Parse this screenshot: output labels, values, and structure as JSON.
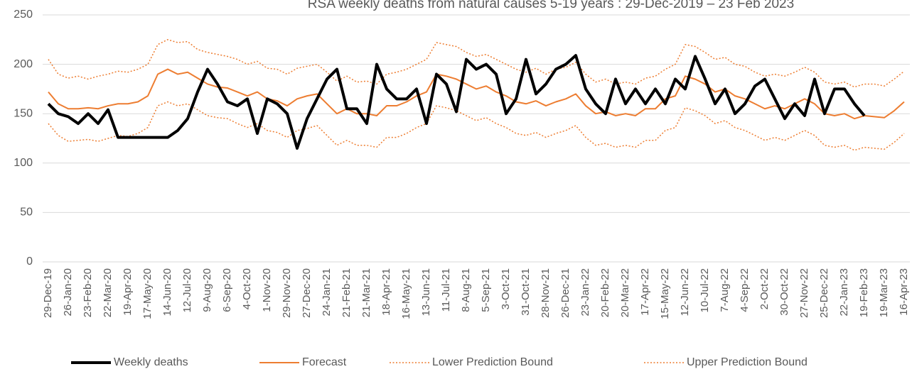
{
  "chart_data": {
    "type": "line",
    "title": "RSA weekly deaths from natural causes 5-19 years : 29-Dec-2019 – 23 Feb 2023",
    "categories": [
      "29-Dec-19",
      null,
      "26-Jan-20",
      null,
      "23-Feb-20",
      null,
      "22-Mar-20",
      null,
      "19-Apr-20",
      null,
      "17-May-20",
      null,
      "14-Jun-20",
      null,
      "12-Jul-20",
      null,
      "9-Aug-20",
      null,
      "6-Sep-20",
      null,
      "4-Oct-20",
      null,
      "1-Nov-20",
      null,
      "29-Nov-20",
      null,
      "27-Dec-20",
      null,
      "24-Jan-21",
      null,
      "21-Feb-21",
      null,
      "21-Mar-21",
      null,
      "18-Apr-21",
      null,
      "16-May-21",
      null,
      "13-Jun-21",
      null,
      "11-Jul-21",
      null,
      "8-Aug-21",
      null,
      "5-Sep-21",
      null,
      "3-Oct-21",
      null,
      "31-Oct-21",
      null,
      "28-Nov-21",
      null,
      "26-Dec-21",
      null,
      "23-Jan-22",
      null,
      "20-Feb-22",
      null,
      "20-Mar-22",
      null,
      "17-Apr-22",
      null,
      "15-May-22",
      null,
      "12-Jun-22",
      null,
      "10-Jul-22",
      null,
      "7-Aug-22",
      null,
      "4-Sep-22",
      null,
      "2-Oct-22",
      null,
      "30-Oct-22",
      null,
      "27-Nov-22",
      null,
      "25-Dec-22",
      null,
      "22-Jan-23",
      null,
      "19-Feb-23",
      null,
      "19-Mar-23",
      null,
      "16-Apr-23"
    ],
    "series": [
      {
        "name": "Weekly deaths",
        "color": "#000000",
        "width": 4,
        "dash": "solid",
        "values": [
          160,
          150,
          147,
          140,
          150,
          140,
          154,
          126,
          126,
          126,
          126,
          126,
          126,
          133,
          145,
          172,
          195,
          180,
          162,
          158,
          165,
          130,
          165,
          160,
          150,
          115,
          145,
          165,
          185,
          195,
          155,
          155,
          140,
          200,
          175,
          165,
          165,
          175,
          140,
          190,
          180,
          152,
          205,
          195,
          200,
          190,
          150,
          165,
          205,
          170,
          180,
          195,
          200,
          209,
          175,
          160,
          150,
          185,
          160,
          175,
          160,
          175,
          160,
          185,
          175,
          208,
          185,
          160,
          175,
          150,
          160,
          178,
          185,
          165,
          145,
          160,
          148,
          185,
          150,
          175,
          175,
          160,
          148,
          null,
          null,
          null,
          null
        ]
      },
      {
        "name": "Forecast",
        "color": "#ed7d31",
        "width": 2,
        "dash": "solid",
        "values": [
          172,
          160,
          155,
          155,
          156,
          155,
          158,
          160,
          160,
          162,
          168,
          190,
          195,
          190,
          192,
          186,
          180,
          177,
          176,
          172,
          168,
          172,
          165,
          163,
          158,
          165,
          168,
          170,
          160,
          150,
          155,
          150,
          150,
          148,
          158,
          158,
          162,
          168,
          172,
          190,
          188,
          185,
          180,
          175,
          178,
          172,
          168,
          162,
          160,
          163,
          158,
          162,
          165,
          170,
          158,
          150,
          152,
          148,
          150,
          148,
          155,
          155,
          165,
          168,
          188,
          185,
          180,
          172,
          175,
          168,
          165,
          160,
          155,
          158,
          155,
          160,
          165,
          160,
          150,
          148,
          150,
          145,
          148,
          147,
          146,
          153,
          162
        ]
      },
      {
        "name": "Lower Prediction Bound",
        "color": "#ed7d31",
        "width": 1.5,
        "dash": "dotted",
        "values": [
          140,
          128,
          122,
          123,
          124,
          122,
          125,
          128,
          127,
          130,
          136,
          158,
          162,
          158,
          160,
          154,
          148,
          146,
          145,
          140,
          136,
          140,
          133,
          131,
          126,
          133,
          135,
          138,
          128,
          118,
          123,
          118,
          118,
          116,
          126,
          126,
          130,
          136,
          140,
          158,
          156,
          153,
          148,
          143,
          146,
          140,
          136,
          130,
          128,
          131,
          126,
          130,
          133,
          138,
          126,
          118,
          120,
          116,
          118,
          116,
          123,
          123,
          133,
          136,
          156,
          153,
          148,
          140,
          143,
          136,
          133,
          128,
          123,
          126,
          123,
          128,
          133,
          128,
          118,
          116,
          118,
          113,
          116,
          115,
          114,
          121,
          130
        ]
      },
      {
        "name": "Upper Prediction Bound",
        "color": "#ed7d31",
        "width": 1.5,
        "dash": "dotted",
        "values": [
          205,
          190,
          186,
          188,
          185,
          188,
          190,
          193,
          192,
          195,
          200,
          220,
          225,
          222,
          223,
          215,
          212,
          210,
          208,
          205,
          200,
          203,
          196,
          195,
          190,
          196,
          198,
          200,
          192,
          183,
          188,
          182,
          183,
          180,
          190,
          192,
          195,
          200,
          205,
          222,
          220,
          218,
          212,
          208,
          210,
          205,
          200,
          195,
          192,
          196,
          190,
          195,
          197,
          202,
          190,
          182,
          185,
          180,
          182,
          180,
          186,
          188,
          195,
          200,
          220,
          218,
          212,
          205,
          207,
          200,
          198,
          192,
          188,
          190,
          188,
          192,
          197,
          192,
          182,
          180,
          182,
          177,
          180,
          180,
          178,
          185,
          193
        ]
      }
    ],
    "ylim": [
      0,
      250
    ],
    "yticks": [
      0,
      50,
      100,
      150,
      200,
      250
    ],
    "grid": true,
    "legend": "bottom"
  }
}
